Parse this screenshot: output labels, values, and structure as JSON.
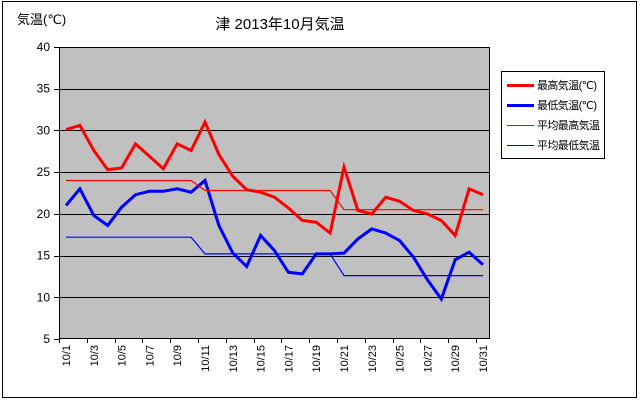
{
  "frame": {
    "background": "#FFFFFF",
    "border_color": "#000000"
  },
  "title": "津 2013年10月気温",
  "y_axis_title": "気温(℃)",
  "chart_data": {
    "type": "line",
    "title": "津 2013年10月気温",
    "ylabel": "気温(℃)",
    "ylim": [
      5,
      40
    ],
    "ytick_interval": 5,
    "ytick_labels": [
      "40",
      "35",
      "30",
      "25",
      "20",
      "15",
      "10",
      "5"
    ],
    "n_days": 31,
    "xtick_labels": [
      "10/1",
      "10/3",
      "10/5",
      "10/7",
      "10/9",
      "10/11",
      "10/13",
      "10/15",
      "10/17",
      "10/19",
      "10/21",
      "10/23",
      "10/25",
      "10/27",
      "10/29",
      "10/31"
    ],
    "plot_background": "#C0C0C0",
    "grid": true,
    "gridline_color": "#000000",
    "legend_position": "right",
    "series": [
      {
        "name": "最高気温(℃)",
        "color": "#FF0000",
        "thickness": "thick",
        "values": [
          30.1,
          30.6,
          27.6,
          25.3,
          25.5,
          28.4,
          26.9,
          25.4,
          28.4,
          27.6,
          31.0,
          27.1,
          24.5,
          22.9,
          22.6,
          22.0,
          20.7,
          19.2,
          19.0,
          17.7,
          25.6,
          20.4,
          20.0,
          22.0,
          21.5,
          20.4,
          20.0,
          19.2,
          17.4,
          23.0,
          22.3
        ]
      },
      {
        "name": "最低気温(℃)",
        "color": "#0000FF",
        "thickness": "thick",
        "values": [
          21.0,
          23.0,
          19.8,
          18.6,
          20.8,
          22.3,
          22.7,
          22.7,
          23.0,
          22.6,
          24.0,
          18.6,
          15.3,
          13.7,
          17.4,
          15.6,
          13.0,
          12.8,
          15.2,
          15.2,
          15.3,
          17.0,
          18.2,
          17.7,
          16.8,
          14.8,
          12.1,
          9.8,
          14.5,
          15.4,
          13.9
        ]
      },
      {
        "name": "平均最高気温",
        "color": "#FF0000",
        "thickness": "thin",
        "values": [
          24.0,
          24.0,
          24.0,
          24.0,
          24.0,
          24.0,
          24.0,
          24.0,
          24.0,
          24.0,
          22.8,
          22.8,
          22.8,
          22.8,
          22.8,
          22.8,
          22.8,
          22.8,
          22.8,
          22.8,
          20.5,
          20.5,
          20.5,
          20.5,
          20.5,
          20.5,
          20.5,
          20.5,
          20.5,
          20.5,
          20.5
        ]
      },
      {
        "name": "平均最低気温",
        "color": "#0000FF",
        "thickness": "thin",
        "values": [
          17.2,
          17.2,
          17.2,
          17.2,
          17.2,
          17.2,
          17.2,
          17.2,
          17.2,
          17.2,
          15.2,
          15.2,
          15.2,
          15.2,
          15.2,
          15.2,
          15.2,
          15.2,
          15.2,
          15.2,
          12.6,
          12.6,
          12.6,
          12.6,
          12.6,
          12.6,
          12.6,
          12.6,
          12.6,
          12.6,
          12.6
        ]
      }
    ]
  }
}
